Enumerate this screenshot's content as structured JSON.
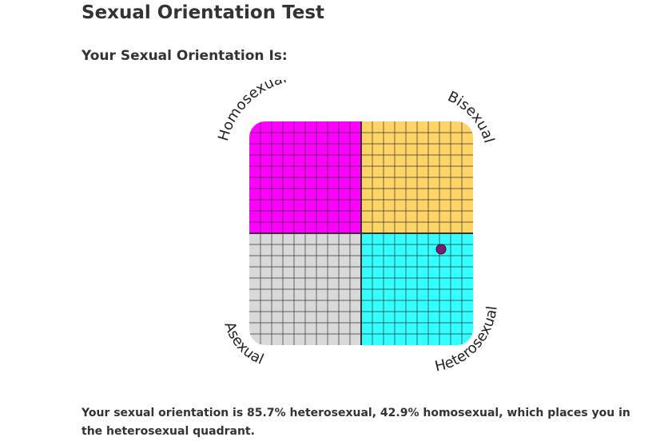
{
  "header": {
    "title": "Sexual Orientation Test",
    "subtitle": "Your Sexual Orientation Is:"
  },
  "chart_data": {
    "type": "scatter",
    "quadrant_labels": {
      "top_left": "Homosexual",
      "top_right": "Bisexual",
      "bottom_left": "Asexual",
      "bottom_right": "Heterosexual"
    },
    "quadrant_colors": {
      "top_left": "#ff00ff",
      "top_right": "#ffd466",
      "bottom_left": "#d9d9d9",
      "bottom_right": "#33ffff"
    },
    "x_axis_quantity": "heterosexual percent",
    "y_axis_quantity": "homosexual percent",
    "xlim": [
      0,
      100
    ],
    "ylim": [
      0,
      100
    ],
    "grid": true,
    "points": [
      {
        "x": 85.7,
        "y": 42.9,
        "color": "#7a1f6b"
      }
    ]
  },
  "result": {
    "text": "Your sexual orientation is 85.7% heterosexual, 42.9% homosexual, which places you in the heterosexual quadrant."
  }
}
